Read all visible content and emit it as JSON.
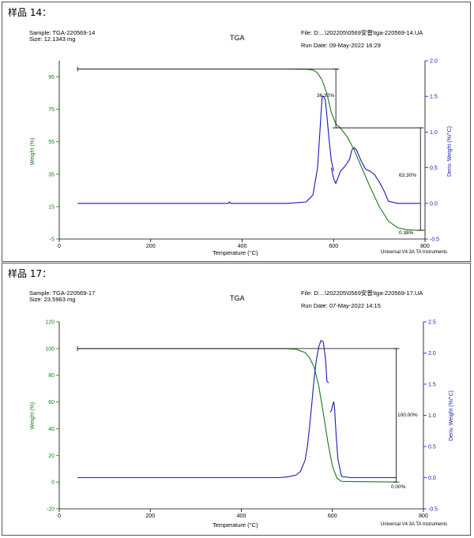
{
  "colors": {
    "weight": "#1a7a1a",
    "deriv": "#1a1ab4",
    "axis": "#000000",
    "annot": "#000000"
  },
  "panels": [
    {
      "title": "样品 14：",
      "header": {
        "sample": "Sample: TGA-220569-14",
        "size": "Size:  12.1343 mg",
        "method": "TGA",
        "file": "File: D:...\\202205\\0569安普\\tga-220569-14.UA",
        "run_date": "Run Date: 09-May-2022 16:29"
      },
      "footer": "Universal V4.3A TA Instruments",
      "annotations": [
        "36.32%",
        "63.30%",
        "0.38%"
      ]
    },
    {
      "title": "样品 17：",
      "header": {
        "sample": "Sample: TGA-220569-17",
        "size": "Size:  23.5963 mg",
        "method": "TGA",
        "file": "File: D:...\\202205\\0569安普\\tga-220569-17.UA",
        "run_date": "Run Date: 07-May-2022 14:15"
      },
      "footer": "Universal V4.3A TA Instruments",
      "annotations": [
        "100.00%",
        "0.00%"
      ]
    }
  ],
  "chart_data": [
    {
      "type": "line",
      "title": "TGA",
      "xlabel": "Temperature (°C)",
      "ylabel": "Weight (%)",
      "y2label": "Deriv. Weight (%/°C)",
      "xlim": [
        0,
        800
      ],
      "ylim": [
        -5,
        105
      ],
      "y2lim": [
        -0.5,
        2.0
      ],
      "xticks": [
        "0",
        "200",
        "400",
        "600",
        "800"
      ],
      "yticks": [
        "95",
        "75",
        "55",
        "35",
        "15",
        "-5"
      ],
      "y2ticks": [
        "2.0",
        "1.5",
        "1.0",
        "0.5",
        "0.0",
        "-0.5"
      ],
      "series": [
        {
          "name": "Weight (%)",
          "axis": "left",
          "x": [
            40,
            100,
            200,
            300,
            400,
            500,
            540,
            555,
            565,
            575,
            585,
            595,
            605,
            615,
            630,
            645,
            660,
            680,
            700,
            720,
            740,
            760,
            780,
            800
          ],
          "values": [
            99.9,
            99.9,
            99.9,
            99.9,
            99.9,
            99.9,
            99.8,
            99.3,
            97.5,
            93,
            85,
            73,
            66,
            63.5,
            58,
            50,
            40,
            27,
            15,
            6,
            2,
            0.8,
            0.4,
            0.38
          ]
        },
        {
          "name": "Deriv. Weight (%/°C)",
          "axis": "right",
          "x": [
            40,
            100,
            200,
            300,
            370,
            372,
            375,
            400,
            500,
            540,
            555,
            565,
            570,
            575,
            578,
            582,
            585,
            590,
            595,
            600
          ],
          "values": [
            0.0,
            0.0,
            0.0,
            0.0,
            0.0,
            0.02,
            0.0,
            0.0,
            0.0,
            0.02,
            0.12,
            0.5,
            1.0,
            1.5,
            1.5,
            1.45,
            1.25,
            0.9,
            0.6,
            0.45
          ]
        },
        {
          "name": "Deriv. Weight (%/°C) (segment 2)",
          "axis": "right",
          "x": [
            595,
            600,
            605,
            615,
            625,
            635,
            640,
            645,
            650,
            660,
            670,
            680,
            690,
            700,
            710,
            720,
            740,
            760,
            790
          ],
          "values": [
            0.5,
            0.35,
            0.28,
            0.45,
            0.52,
            0.62,
            0.75,
            0.78,
            0.75,
            0.6,
            0.48,
            0.45,
            0.4,
            0.3,
            0.18,
            0.03,
            0.0,
            0.0,
            0.0
          ]
        }
      ]
    },
    {
      "type": "line",
      "title": "TGA",
      "xlabel": "Temperature (°C)",
      "ylabel": "Weight (%)",
      "y2label": "Deriv. Weight (%/°C)",
      "xlim": [
        0,
        800
      ],
      "ylim": [
        -20,
        120
      ],
      "y2lim": [
        -0.5,
        2.5
      ],
      "xticks": [
        "0",
        "200",
        "400",
        "600",
        "800"
      ],
      "yticks": [
        "120",
        "100",
        "80",
        "60",
        "40",
        "20",
        "0",
        "-20"
      ],
      "y2ticks": [
        "2.5",
        "2.0",
        "1.5",
        "1.0",
        "0.5",
        "0.0",
        "-0.5"
      ],
      "series": [
        {
          "name": "Weight (%)",
          "axis": "left",
          "x": [
            40,
            100,
            200,
            300,
            400,
            500,
            520,
            540,
            550,
            560,
            570,
            580,
            590,
            600,
            610,
            620,
            740
          ],
          "values": [
            100,
            100,
            100,
            100,
            100,
            100,
            99.5,
            97,
            93,
            86,
            72,
            52,
            30,
            12,
            3,
            0.5,
            0
          ]
        },
        {
          "name": "Deriv. Weight (%/°C)",
          "axis": "right",
          "x": [
            40,
            100,
            200,
            300,
            400,
            480,
            500,
            520,
            530,
            540,
            545,
            550,
            555,
            560,
            565,
            570,
            575,
            580,
            585,
            588,
            592
          ],
          "values": [
            0.0,
            0.0,
            0.0,
            0.0,
            0.0,
            0.0,
            0.01,
            0.04,
            0.1,
            0.28,
            0.5,
            0.82,
            1.2,
            1.6,
            1.9,
            2.1,
            2.2,
            2.18,
            1.9,
            1.55,
            1.52
          ]
        },
        {
          "name": "Deriv. Weight (%/°C) (segment 2)",
          "axis": "right",
          "x": [
            595,
            598,
            600,
            603,
            605,
            608,
            612,
            620,
            640,
            700,
            740
          ],
          "values": [
            1.05,
            1.08,
            1.15,
            1.22,
            1.1,
            0.7,
            0.3,
            0.02,
            0.0,
            0.0,
            0.0
          ]
        }
      ]
    }
  ]
}
